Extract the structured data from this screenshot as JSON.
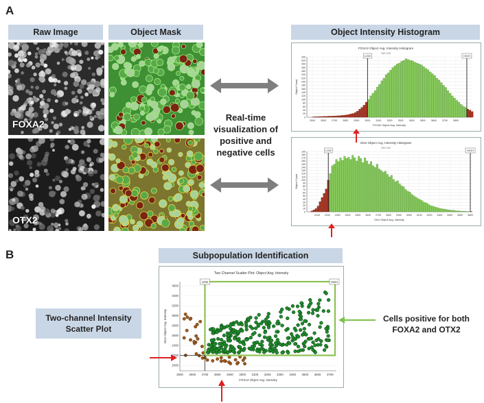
{
  "panel_a_label": "A",
  "panel_b_label": "B",
  "raw_image_header": "Raw Image",
  "object_mask_header": "Object Mask",
  "histogram_header": "Object Intensity Histogram",
  "channel_top": "FOXA2",
  "channel_bottom": "OTX2",
  "center_text": [
    "Real-time",
    "visualization of",
    "positive and",
    "negative cells"
  ],
  "subpop_header": "Subpopulation Identification",
  "scatter_side_label": [
    "Two-channel Intensity",
    "Scatter Plot"
  ],
  "positive_label": [
    "Cells positive for both",
    "FOXA2 and OTX2"
  ],
  "colors": {
    "header_bg": "#c9d6e6",
    "positive": "#6fbf3a",
    "negative": "#9b2a1a",
    "arrow": "#e02020",
    "grey_arrow": "#7f7f7f"
  },
  "chart_data": [
    {
      "type": "bar",
      "title": "FOXA2 Object Avg. Intensity Histogram",
      "xlabel": "FOXA2 Object Avg. Intensity",
      "ylabel": "Object Count",
      "annotation": "545.206",
      "gate_low_label": "LOW",
      "gate_high_label": "HIGH",
      "gate_low": 3000,
      "gate_high": 3900,
      "xlim": [
        2450,
        3950
      ],
      "ylim": [
        0,
        340
      ],
      "xticks": [
        "2500",
        "2600",
        "2700",
        "2800",
        "2900",
        "3000",
        "3100",
        "3200",
        "3300",
        "3400",
        "3500",
        "3600",
        "3700",
        "3800"
      ],
      "yticks": [
        "0",
        "20",
        "40",
        "60",
        "80",
        "100",
        "120",
        "140",
        "160",
        "180",
        "200",
        "220",
        "240",
        "260",
        "280",
        "300",
        "320",
        "340"
      ],
      "bin_start": 2500,
      "bin_width": 20,
      "values": [
        2,
        3,
        3,
        4,
        4,
        5,
        5,
        6,
        6,
        7,
        7,
        8,
        9,
        10,
        11,
        13,
        15,
        18,
        21,
        26,
        34,
        45,
        55,
        68,
        85,
        100,
        120,
        135,
        150,
        170,
        185,
        205,
        220,
        240,
        250,
        265,
        280,
        290,
        300,
        305,
        315,
        320,
        330,
        325,
        320,
        318,
        310,
        305,
        300,
        295,
        285,
        275,
        268,
        255,
        245,
        235,
        220,
        210,
        195,
        180,
        168,
        150,
        135,
        120,
        108,
        95,
        85,
        72,
        62,
        55,
        46,
        40,
        32,
        26,
        22,
        18,
        14,
        12,
        9,
        7,
        6,
        5,
        4,
        3,
        3,
        2,
        2,
        1,
        1,
        1
      ]
    },
    {
      "type": "bar",
      "title": "Otx2 Object Avg. Intensity Histogram",
      "xlabel": "Otx2 Object Avg. Intensity",
      "ylabel": "Object Count",
      "annotation": "545.026",
      "gate_low_label": "LOW",
      "gate_high_label": "HIGH",
      "gate_low": 2210,
      "gate_high": 3600,
      "xlim": [
        2000,
        3620
      ],
      "ylim": [
        0,
        190
      ],
      "xticks": [
        "2100",
        "2200",
        "2300",
        "2400",
        "2500",
        "2600",
        "2700",
        "2800",
        "2900",
        "3000",
        "3100",
        "3200",
        "3300",
        "3400",
        "3500",
        "3600"
      ],
      "yticks": [
        "0",
        "10",
        "20",
        "30",
        "40",
        "50",
        "60",
        "70",
        "80",
        "90",
        "100",
        "110",
        "120",
        "130",
        "140",
        "150",
        "160",
        "170",
        "180",
        "190"
      ],
      "bin_start": 2040,
      "bin_width": 20,
      "values": [
        3,
        6,
        10,
        18,
        32,
        45,
        58,
        72,
        100,
        120,
        145,
        150,
        165,
        158,
        170,
        162,
        175,
        168,
        172,
        165,
        178,
        170,
        160,
        175,
        168,
        155,
        170,
        160,
        150,
        158,
        145,
        140,
        150,
        135,
        130,
        125,
        128,
        118,
        110,
        115,
        102,
        95,
        98,
        88,
        82,
        78,
        70,
        65,
        62,
        55,
        50,
        46,
        42,
        38,
        35,
        30,
        28,
        24,
        20,
        18,
        16,
        14,
        12,
        10,
        9,
        8,
        7,
        6,
        5,
        5,
        4,
        3,
        3,
        2,
        2,
        2,
        1,
        1,
        1,
        1
      ]
    },
    {
      "type": "scatter",
      "title": "Two Channel Scatter Plot: Object Avg. Intensity",
      "xlabel": "FOXA2 Object Avg. Intensity",
      "ylabel": "Otx2 Object Avg. Intensity",
      "gate_low_label": "LOW",
      "gate_high_label": "HIGH",
      "xlim": [
        2500,
        3750
      ],
      "ylim": [
        1950,
        2700
      ],
      "xticks": [
        "2500",
        "2600",
        "2700",
        "2800",
        "2900",
        "3000",
        "3100",
        "3200",
        "3300",
        "3400",
        "3500",
        "3600",
        "3700"
      ],
      "yticks": [
        "2000",
        "2200",
        "2400",
        "2600",
        "2800",
        "3000",
        "3200",
        "3400",
        "3600"
      ],
      "gate_x": 2700,
      "gate_y": 2210
    }
  ]
}
